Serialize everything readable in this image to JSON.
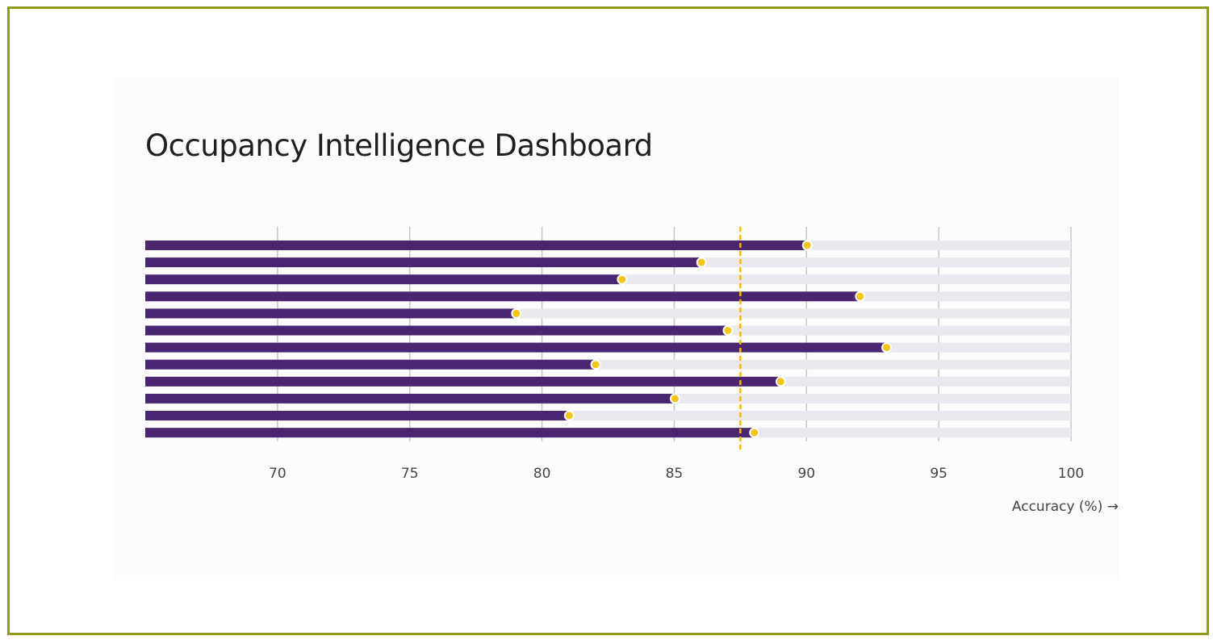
{
  "title": "Occupancy Intelligence Dashboard",
  "colors": {
    "bar": "#4a2670",
    "track": "#ebe9ef",
    "marker": "#f5c518",
    "reference": "#f5b800",
    "grid": "#c6c6c6",
    "border": "#8e9a1c"
  },
  "chart_data": {
    "type": "bar",
    "orientation": "horizontal",
    "xlabel": "Accuracy (%) →",
    "xlim": [
      65,
      100
    ],
    "xticks": [
      70,
      75,
      80,
      85,
      90,
      95,
      100
    ],
    "track_max": 100,
    "reference_line": 87.5,
    "values": [
      90,
      86,
      83,
      92,
      79,
      87,
      93,
      82,
      89,
      85,
      81,
      88
    ]
  }
}
